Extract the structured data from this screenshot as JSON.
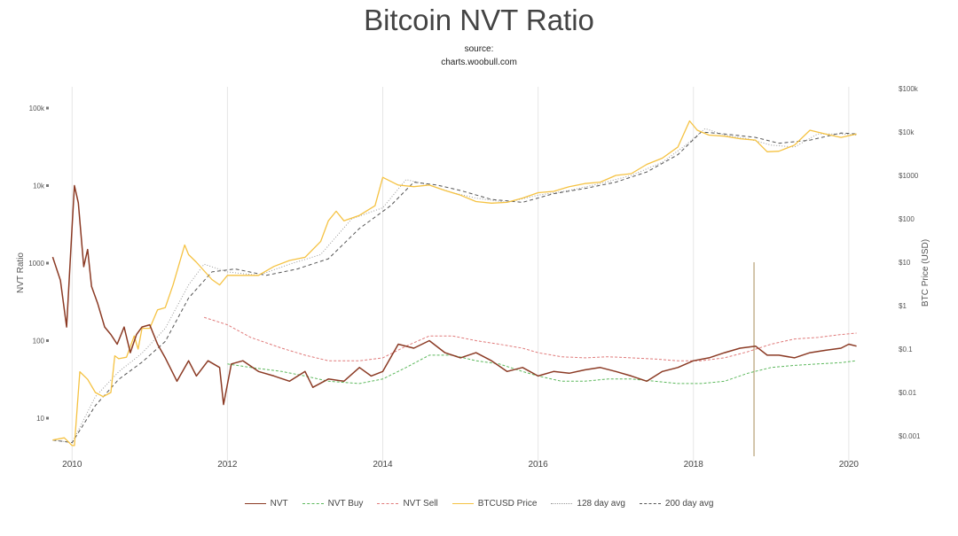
{
  "header": {
    "title": "Bitcoin NVT Ratio",
    "source_label": "source:",
    "source_url": "charts.woobull.com"
  },
  "chart_data": {
    "type": "line",
    "title": "Bitcoin NVT Ratio",
    "x_ticks": [
      "2010",
      "2012",
      "2014",
      "2016",
      "2018",
      "2020"
    ],
    "xlim": [
      2009.7,
      2020.15
    ],
    "left_axis": {
      "label": "NVT Ratio",
      "scale": "log",
      "lim": [
        4,
        150000
      ],
      "tick_values": [
        10,
        100,
        1000,
        10000,
        100000
      ],
      "tick_labels": [
        "10",
        "100",
        "1000",
        "10k",
        "100k"
      ]
    },
    "right_axis": {
      "label": "BTC Price (USD)",
      "scale": "log",
      "lim": [
        0.0003,
        150000
      ],
      "tick_values": [
        0.001,
        0.01,
        0.1,
        1,
        10,
        100,
        1000,
        10000,
        100000
      ],
      "tick_labels": [
        "$0.001",
        "$0.01",
        "$0.1",
        "$1",
        "$10",
        "$100",
        "$1000",
        "$10k",
        "$100k"
      ]
    },
    "grid": "vertical",
    "legend_position": "bottom",
    "series": [
      {
        "name": "NVT",
        "axis": "left",
        "color": "#8b3a24",
        "dash": "solid",
        "x": [
          2009.75,
          2009.85,
          2009.93,
          2010.0,
          2010.03,
          2010.08,
          2010.15,
          2010.2,
          2010.25,
          2010.33,
          2010.42,
          2010.5,
          2010.58,
          2010.67,
          2010.75,
          2010.83,
          2010.9,
          2011.0,
          2011.1,
          2011.2,
          2011.35,
          2011.5,
          2011.6,
          2011.75,
          2011.9,
          2011.95,
          2012.05,
          2012.2,
          2012.4,
          2012.6,
          2012.8,
          2013.0,
          2013.1,
          2013.3,
          2013.5,
          2013.7,
          2013.85,
          2014.0,
          2014.2,
          2014.4,
          2014.6,
          2014.8,
          2015.0,
          2015.2,
          2015.4,
          2015.6,
          2015.8,
          2016.0,
          2016.2,
          2016.4,
          2016.6,
          2016.8,
          2017.0,
          2017.2,
          2017.4,
          2017.6,
          2017.8,
          2018.0,
          2018.2,
          2018.4,
          2018.6,
          2018.8,
          2018.95,
          2019.1,
          2019.3,
          2019.5,
          2019.7,
          2019.9,
          2020.0,
          2020.1
        ],
        "y": [
          1200,
          600,
          150,
          3000,
          10000,
          6000,
          900,
          1500,
          500,
          300,
          150,
          120,
          90,
          150,
          70,
          120,
          150,
          160,
          90,
          60,
          30,
          55,
          35,
          55,
          45,
          15,
          50,
          55,
          40,
          35,
          30,
          40,
          25,
          32,
          30,
          45,
          35,
          40,
          90,
          80,
          100,
          70,
          60,
          70,
          55,
          40,
          45,
          35,
          40,
          38,
          42,
          45,
          40,
          35,
          30,
          40,
          45,
          55,
          60,
          70,
          80,
          85,
          65,
          65,
          60,
          70,
          75,
          80,
          90,
          85
        ]
      },
      {
        "name": "NVT Buy",
        "axis": "left",
        "color": "#5cb85c",
        "dash": "3,2",
        "x": [
          2012.0,
          2012.3,
          2012.7,
          2013.0,
          2013.3,
          2013.7,
          2014.0,
          2014.3,
          2014.6,
          2014.9,
          2015.2,
          2015.5,
          2015.8,
          2016.0,
          2016.3,
          2016.6,
          2016.9,
          2017.2,
          2017.5,
          2017.8,
          2018.1,
          2018.4,
          2018.7,
          2019.0,
          2019.3,
          2019.6,
          2019.9,
          2020.1
        ],
        "y": [
          50,
          45,
          40,
          35,
          30,
          28,
          32,
          45,
          65,
          65,
          55,
          50,
          40,
          35,
          30,
          30,
          32,
          32,
          30,
          28,
          28,
          30,
          38,
          45,
          48,
          50,
          52,
          55
        ]
      },
      {
        "name": "NVT Sell",
        "axis": "left",
        "color": "#e07a7a",
        "dash": "3,2",
        "x": [
          2011.7,
          2012.0,
          2012.3,
          2012.7,
          2013.0,
          2013.3,
          2013.7,
          2014.0,
          2014.3,
          2014.6,
          2014.9,
          2015.2,
          2015.5,
          2015.8,
          2016.0,
          2016.3,
          2016.6,
          2016.9,
          2017.2,
          2017.5,
          2017.8,
          2018.1,
          2018.4,
          2018.7,
          2019.0,
          2019.3,
          2019.6,
          2019.9,
          2020.1
        ],
        "y": [
          200,
          160,
          110,
          80,
          65,
          55,
          55,
          60,
          85,
          115,
          115,
          100,
          90,
          80,
          70,
          62,
          60,
          62,
          60,
          58,
          55,
          55,
          60,
          72,
          90,
          105,
          110,
          120,
          125
        ]
      },
      {
        "name": "BTCUSD Price",
        "axis": "right",
        "color": "#f5c242",
        "dash": "solid",
        "x": [
          2009.75,
          2009.9,
          2010.0,
          2010.03,
          2010.1,
          2010.2,
          2010.3,
          2010.4,
          2010.5,
          2010.55,
          2010.6,
          2010.7,
          2010.8,
          2010.85,
          2010.9,
          2011.0,
          2011.1,
          2011.2,
          2011.3,
          2011.45,
          2011.5,
          2011.6,
          2011.8,
          2011.9,
          2012.0,
          2012.2,
          2012.4,
          2012.6,
          2012.8,
          2013.0,
          2013.2,
          2013.3,
          2013.4,
          2013.5,
          2013.7,
          2013.9,
          2014.0,
          2014.2,
          2014.4,
          2014.6,
          2014.8,
          2015.0,
          2015.2,
          2015.4,
          2015.6,
          2015.8,
          2016.0,
          2016.2,
          2016.4,
          2016.6,
          2016.8,
          2017.0,
          2017.2,
          2017.4,
          2017.6,
          2017.8,
          2017.95,
          2018.05,
          2018.2,
          2018.4,
          2018.6,
          2018.8,
          2018.95,
          2019.1,
          2019.3,
          2019.5,
          2019.7,
          2019.9,
          2020.1
        ],
        "y": [
          0.0008,
          0.0009,
          0.0006,
          0.0006,
          0.03,
          0.02,
          0.01,
          0.008,
          0.01,
          0.07,
          0.06,
          0.065,
          0.2,
          0.1,
          0.3,
          0.3,
          0.8,
          0.9,
          3.0,
          25,
          15,
          10,
          4,
          3,
          5,
          5,
          5,
          8,
          11,
          13,
          30,
          90,
          150,
          90,
          120,
          200,
          900,
          600,
          550,
          600,
          450,
          350,
          250,
          230,
          240,
          300,
          400,
          430,
          550,
          650,
          700,
          1000,
          1100,
          1800,
          2500,
          4500,
          18000,
          11000,
          8500,
          8000,
          7000,
          6500,
          3500,
          3600,
          5000,
          11000,
          9000,
          7500,
          9000
        ]
      },
      {
        "name": "128 day avg",
        "axis": "right",
        "color": "#999999",
        "dash": "1,2",
        "x": [
          2009.75,
          2010.0,
          2010.3,
          2010.6,
          2010.9,
          2011.2,
          2011.5,
          2011.7,
          2012.0,
          2012.4,
          2012.8,
          2013.2,
          2013.6,
          2014.0,
          2014.3,
          2014.6,
          2014.9,
          2015.2,
          2015.6,
          2016.0,
          2016.4,
          2016.8,
          2017.2,
          2017.6,
          2017.9,
          2018.15,
          2018.4,
          2018.7,
          2019.0,
          2019.3,
          2019.6,
          2019.9,
          2020.1
        ],
        "y": [
          0.0008,
          0.0007,
          0.008,
          0.03,
          0.08,
          0.3,
          3,
          9,
          6,
          5,
          9,
          15,
          100,
          180,
          800,
          600,
          400,
          300,
          240,
          350,
          450,
          650,
          1000,
          2000,
          5000,
          12000,
          8500,
          7000,
          5000,
          4500,
          9000,
          9000,
          8500
        ]
      },
      {
        "name": "200 day avg",
        "axis": "right",
        "color": "#555555",
        "dash": "4,3",
        "x": [
          2009.75,
          2010.0,
          2010.3,
          2010.6,
          2010.9,
          2011.2,
          2011.5,
          2011.8,
          2012.1,
          2012.5,
          2012.9,
          2013.3,
          2013.7,
          2014.1,
          2014.4,
          2014.7,
          2015.0,
          2015.4,
          2015.8,
          2016.2,
          2016.6,
          2017.0,
          2017.4,
          2017.8,
          2018.1,
          2018.4,
          2018.8,
          2019.1,
          2019.5,
          2019.9,
          2020.1
        ],
        "y": [
          0.0008,
          0.0007,
          0.005,
          0.02,
          0.05,
          0.15,
          1.5,
          6,
          7,
          5,
          7,
          12,
          60,
          200,
          700,
          600,
          450,
          280,
          240,
          380,
          500,
          700,
          1200,
          3000,
          10000,
          9000,
          7500,
          5500,
          6500,
          9500,
          9000
        ]
      }
    ],
    "annotations": [
      {
        "type": "vertical_line",
        "x": 2018.78,
        "y_from": 5,
        "y_to": 1000,
        "axis": "left",
        "color": "#b5a074"
      }
    ]
  }
}
